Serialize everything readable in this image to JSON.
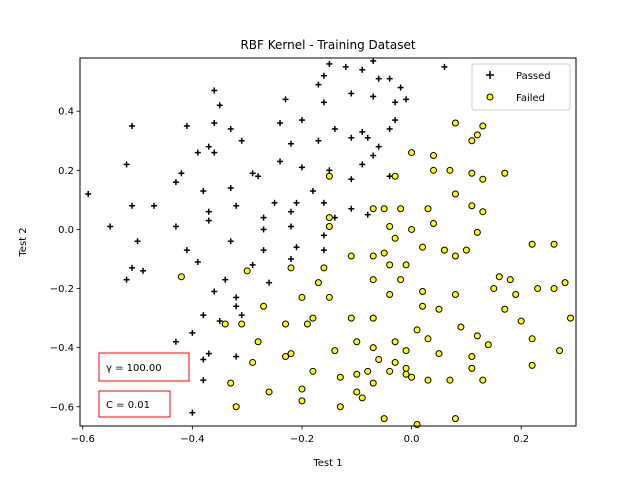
{
  "chart_data": {
    "type": "scatter",
    "title": "RBF Kernel - Training Dataset",
    "xlabel": "Test 1",
    "ylabel": "Test 2",
    "xlim": [
      -0.605,
      0.3
    ],
    "ylim": [
      -0.665,
      0.58
    ],
    "xticks": [
      -0.6,
      -0.4,
      -0.2,
      0.0,
      0.2
    ],
    "xtick_labels": [
      "−0.6",
      "−0.4",
      "−0.2",
      "0.0",
      "0.2"
    ],
    "yticks": [
      -0.6,
      -0.4,
      -0.2,
      0.0,
      0.2,
      0.4
    ],
    "ytick_labels": [
      "−0.6",
      "−0.4",
      "−0.2",
      "0.0",
      "0.2",
      "0.4"
    ],
    "grid": false,
    "legend": {
      "position": "top-right",
      "entries": [
        {
          "label": "Passed",
          "marker": "plus",
          "color": "#000000"
        },
        {
          "label": "Failed",
          "marker": "circle",
          "color": "#ffff00"
        }
      ]
    },
    "annotations": [
      {
        "text": "γ = 100.00",
        "border": "#ff0000"
      },
      {
        "text": "C = 0.01",
        "border": "#ff0000"
      }
    ],
    "series": [
      {
        "name": "Passed",
        "marker": "plus",
        "color": "#000000",
        "points": [
          [
            -0.15,
            0.56
          ],
          [
            -0.12,
            0.55
          ],
          [
            -0.09,
            0.54
          ],
          [
            -0.07,
            0.57
          ],
          [
            0.06,
            0.55
          ],
          [
            -0.16,
            0.52
          ],
          [
            -0.06,
            0.51
          ],
          [
            -0.04,
            0.51
          ],
          [
            -0.02,
            0.48
          ],
          [
            -0.17,
            0.49
          ],
          [
            -0.23,
            0.44
          ],
          [
            -0.16,
            0.43
          ],
          [
            -0.11,
            0.46
          ],
          [
            -0.07,
            0.45
          ],
          [
            -0.03,
            0.43
          ],
          [
            -0.01,
            0.44
          ],
          [
            -0.36,
            0.47
          ],
          [
            -0.35,
            0.42
          ],
          [
            -0.36,
            0.36
          ],
          [
            -0.33,
            0.34
          ],
          [
            -0.41,
            0.35
          ],
          [
            -0.24,
            0.36
          ],
          [
            -0.2,
            0.37
          ],
          [
            -0.14,
            0.34
          ],
          [
            -0.09,
            0.33
          ],
          [
            -0.04,
            0.34
          ],
          [
            -0.03,
            0.37
          ],
          [
            -0.51,
            0.35
          ],
          [
            -0.37,
            0.28
          ],
          [
            -0.31,
            0.3
          ],
          [
            -0.22,
            0.29
          ],
          [
            -0.17,
            0.3
          ],
          [
            -0.11,
            0.31
          ],
          [
            -0.08,
            0.31
          ],
          [
            -0.06,
            0.28
          ],
          [
            -0.36,
            0.26
          ],
          [
            -0.39,
            0.26
          ],
          [
            -0.42,
            0.19
          ],
          [
            -0.29,
            0.19
          ],
          [
            -0.24,
            0.23
          ],
          [
            -0.2,
            0.21
          ],
          [
            -0.15,
            0.2
          ],
          [
            -0.09,
            0.22
          ],
          [
            -0.07,
            0.25
          ],
          [
            -0.52,
            0.22
          ],
          [
            -0.43,
            0.16
          ],
          [
            -0.38,
            0.13
          ],
          [
            -0.33,
            0.14
          ],
          [
            -0.28,
            0.18
          ],
          [
            -0.18,
            0.13
          ],
          [
            -0.11,
            0.17
          ],
          [
            -0.04,
            0.18
          ],
          [
            -0.59,
            0.12
          ],
          [
            -0.51,
            0.08
          ],
          [
            -0.47,
            0.08
          ],
          [
            -0.37,
            0.06
          ],
          [
            -0.32,
            0.08
          ],
          [
            -0.25,
            0.09
          ],
          [
            -0.21,
            0.09
          ],
          [
            -0.16,
            0.09
          ],
          [
            -0.11,
            0.07
          ],
          [
            -0.43,
            0.01
          ],
          [
            -0.37,
            0.03
          ],
          [
            -0.27,
            0.04
          ],
          [
            -0.22,
            0.06
          ],
          [
            -0.14,
            0.04
          ],
          [
            -0.08,
            0.05
          ],
          [
            -0.55,
            0.01
          ],
          [
            -0.5,
            -0.04
          ],
          [
            -0.27,
            0.0
          ],
          [
            -0.22,
            0.01
          ],
          [
            -0.16,
            -0.02
          ],
          [
            -0.41,
            -0.07
          ],
          [
            -0.33,
            -0.04
          ],
          [
            -0.27,
            -0.07
          ],
          [
            -0.21,
            -0.06
          ],
          [
            -0.16,
            -0.07
          ],
          [
            -0.51,
            -0.13
          ],
          [
            -0.49,
            -0.14
          ],
          [
            -0.39,
            -0.11
          ],
          [
            -0.29,
            -0.12
          ],
          [
            -0.22,
            -0.1
          ],
          [
            -0.34,
            -0.17
          ],
          [
            -0.32,
            -0.23
          ],
          [
            -0.26,
            -0.18
          ],
          [
            -0.36,
            -0.21
          ],
          [
            -0.52,
            -0.17
          ],
          [
            -0.31,
            -0.29
          ],
          [
            -0.32,
            -0.26
          ],
          [
            -0.38,
            -0.29
          ],
          [
            -0.4,
            -0.35
          ],
          [
            -0.35,
            -0.31
          ],
          [
            -0.43,
            -0.38
          ],
          [
            -0.37,
            -0.42
          ],
          [
            -0.38,
            -0.44
          ],
          [
            -0.32,
            -0.43
          ],
          [
            -0.38,
            -0.51
          ],
          [
            -0.4,
            -0.62
          ]
        ]
      },
      {
        "name": "Failed",
        "marker": "circle",
        "color": "#ffff00",
        "points": [
          [
            0.08,
            0.36
          ],
          [
            0.13,
            0.35
          ],
          [
            0.12,
            0.32
          ],
          [
            0.11,
            0.3
          ],
          [
            0.0,
            0.26
          ],
          [
            0.04,
            0.25
          ],
          [
            0.04,
            0.2
          ],
          [
            0.07,
            0.2
          ],
          [
            0.11,
            0.19
          ],
          [
            0.13,
            0.17
          ],
          [
            0.17,
            0.19
          ],
          [
            -0.15,
            0.18
          ],
          [
            -0.03,
            0.18
          ],
          [
            0.08,
            0.12
          ],
          [
            0.11,
            0.08
          ],
          [
            0.13,
            0.06
          ],
          [
            -0.07,
            0.07
          ],
          [
            -0.05,
            0.07
          ],
          [
            -0.02,
            0.07
          ],
          [
            0.03,
            0.07
          ],
          [
            -0.15,
            0.04
          ],
          [
            0.04,
            0.02
          ],
          [
            -0.15,
            0.01
          ],
          [
            -0.04,
            0.01
          ],
          [
            -0.03,
            -0.03
          ],
          [
            0.0,
            -0.0
          ],
          [
            0.12,
            -0.01
          ],
          [
            0.02,
            -0.06
          ],
          [
            0.06,
            -0.07
          ],
          [
            0.08,
            -0.09
          ],
          [
            0.1,
            -0.07
          ],
          [
            0.16,
            -0.16
          ],
          [
            0.18,
            -0.17
          ],
          [
            0.22,
            -0.05
          ],
          [
            0.26,
            -0.05
          ],
          [
            -0.3,
            -0.14
          ],
          [
            -0.42,
            -0.16
          ],
          [
            -0.11,
            -0.09
          ],
          [
            -0.07,
            -0.09
          ],
          [
            -0.05,
            -0.08
          ],
          [
            -0.04,
            -0.12
          ],
          [
            -0.01,
            -0.12
          ],
          [
            -0.16,
            -0.13
          ],
          [
            -0.22,
            -0.13
          ],
          [
            -0.17,
            -0.18
          ],
          [
            -0.07,
            -0.17
          ],
          [
            -0.02,
            -0.17
          ],
          [
            0.15,
            -0.2
          ],
          [
            0.19,
            -0.22
          ],
          [
            0.23,
            -0.2
          ],
          [
            0.26,
            -0.2
          ],
          [
            0.28,
            -0.18
          ],
          [
            -0.27,
            -0.26
          ],
          [
            -0.2,
            -0.23
          ],
          [
            -0.15,
            -0.23
          ],
          [
            -0.04,
            -0.22
          ],
          [
            0.02,
            -0.21
          ],
          [
            0.08,
            -0.22
          ],
          [
            0.02,
            -0.26
          ],
          [
            0.05,
            -0.27
          ],
          [
            0.17,
            -0.27
          ],
          [
            -0.23,
            -0.32
          ],
          [
            -0.18,
            -0.3
          ],
          [
            -0.19,
            -0.32
          ],
          [
            -0.11,
            -0.3
          ],
          [
            -0.07,
            -0.3
          ],
          [
            0.09,
            -0.33
          ],
          [
            0.2,
            -0.31
          ],
          [
            0.29,
            -0.3
          ],
          [
            -0.34,
            -0.32
          ],
          [
            -0.31,
            -0.32
          ],
          [
            -0.28,
            -0.38
          ],
          [
            -0.22,
            -0.42
          ],
          [
            -0.23,
            -0.43
          ],
          [
            -0.14,
            -0.41
          ],
          [
            -0.1,
            -0.38
          ],
          [
            -0.07,
            -0.4
          ],
          [
            -0.03,
            -0.38
          ],
          [
            -0.01,
            -0.41
          ],
          [
            0.01,
            -0.34
          ],
          [
            0.03,
            -0.37
          ],
          [
            0.12,
            -0.36
          ],
          [
            0.14,
            -0.39
          ],
          [
            0.22,
            -0.37
          ],
          [
            0.27,
            -0.41
          ],
          [
            -0.29,
            -0.45
          ],
          [
            -0.26,
            -0.55
          ],
          [
            -0.2,
            -0.54
          ],
          [
            -0.2,
            -0.58
          ],
          [
            -0.18,
            -0.48
          ],
          [
            -0.13,
            -0.5
          ],
          [
            -0.1,
            -0.49
          ],
          [
            -0.08,
            -0.48
          ],
          [
            -0.06,
            -0.44
          ],
          [
            -0.04,
            -0.48
          ],
          [
            -0.03,
            -0.45
          ],
          [
            -0.01,
            -0.47
          ],
          [
            -0.01,
            -0.49
          ],
          [
            0.0,
            -0.5
          ],
          [
            0.05,
            -0.42
          ],
          [
            0.11,
            -0.43
          ],
          [
            0.11,
            -0.47
          ],
          [
            0.13,
            -0.51
          ],
          [
            0.22,
            -0.46
          ],
          [
            -0.33,
            -0.52
          ],
          [
            -0.32,
            -0.6
          ],
          [
            -0.1,
            -0.55
          ],
          [
            -0.09,
            -0.57
          ],
          [
            -0.07,
            -0.52
          ],
          [
            -0.05,
            -0.64
          ],
          [
            0.01,
            -0.66
          ],
          [
            0.03,
            -0.51
          ],
          [
            0.07,
            -0.51
          ],
          [
            0.08,
            -0.64
          ],
          [
            -0.13,
            -0.6
          ]
        ]
      }
    ]
  }
}
